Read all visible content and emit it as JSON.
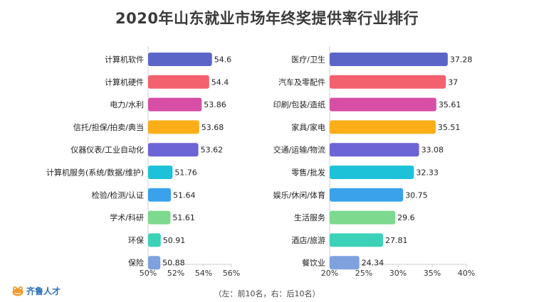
{
  "title": "2020年山东就业市场年终奖提供率行业排行",
  "note": "（左：前10名，右：后10名）",
  "logo_text": "齐鲁人才",
  "chart_data": [
    {
      "type": "bar",
      "orientation": "horizontal",
      "categories": [
        "计算机软件",
        "计算机硬件",
        "电力/水利",
        "信托/担保/拍卖/典当",
        "仪器仪表/工业自动化",
        "计算机服务(系统/数据/维护)",
        "检验/检测/认证",
        "学术/科研",
        "环保",
        "保险"
      ],
      "values": [
        54.6,
        54.4,
        53.86,
        53.68,
        53.62,
        51.76,
        51.64,
        51.61,
        50.91,
        50.88
      ],
      "value_labels": [
        "54.6",
        "54.4",
        "53.86",
        "53.68",
        "53.62",
        "51.76",
        "51.64",
        "51.61",
        "50.91",
        "50.88"
      ],
      "xlim": [
        50,
        56
      ],
      "xticks": [
        50,
        52,
        54,
        56
      ],
      "xtick_labels": [
        "50%",
        "52%",
        "54%",
        "56%"
      ],
      "colors": [
        "#5b65c8",
        "#f3616e",
        "#d64ea6",
        "#fbae17",
        "#6d64d6",
        "#1ec2d8",
        "#39a2ea",
        "#7dd98e",
        "#3bd2b8",
        "#7fa2df"
      ],
      "grid": false
    },
    {
      "type": "bar",
      "orientation": "horizontal",
      "categories": [
        "医疗/卫生",
        "汽车及零配件",
        "印刷/包装/造纸",
        "家具/家电",
        "交通/运输/物流",
        "零售/批发",
        "娱乐/休闲/体育",
        "生活服务",
        "酒店/旅游",
        "餐饮业"
      ],
      "values": [
        37.28,
        37,
        35.61,
        35.51,
        33.08,
        32.33,
        30.75,
        29.6,
        27.81,
        24.34
      ],
      "value_labels": [
        "37.28",
        "37",
        "35.61",
        "35.51",
        "33.08",
        "32.33",
        "30.75",
        "29.6",
        "27.81",
        "24.34"
      ],
      "xlim": [
        20,
        40
      ],
      "xticks": [
        20,
        25,
        30,
        35,
        40
      ],
      "xtick_labels": [
        "20%",
        "25%",
        "30%",
        "35%",
        "40%"
      ],
      "colors": [
        "#5b65c8",
        "#f3616e",
        "#d64ea6",
        "#fbae17",
        "#6d64d6",
        "#1ec2d8",
        "#39a2ea",
        "#7dd98e",
        "#3bd2b8",
        "#7fa2df"
      ],
      "grid": false
    }
  ]
}
